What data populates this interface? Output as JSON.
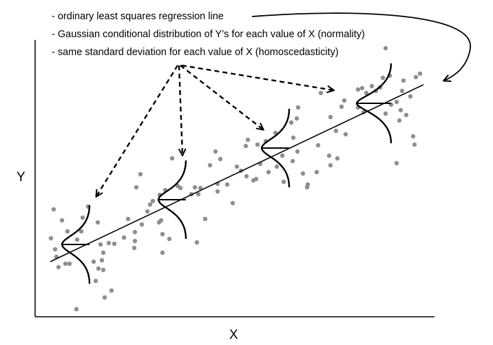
{
  "annotations": [
    "- ordinary least squares regression line",
    "- Gaussian conditional distribution of Y’s for each value of X (normality)",
    "- same standard deviation for each value of X (homoscedasticity)"
  ],
  "axes": {
    "x_label": "X",
    "y_label": "Y"
  },
  "colors": {
    "points": "#8f8f8f",
    "lines": "#000000"
  }
}
